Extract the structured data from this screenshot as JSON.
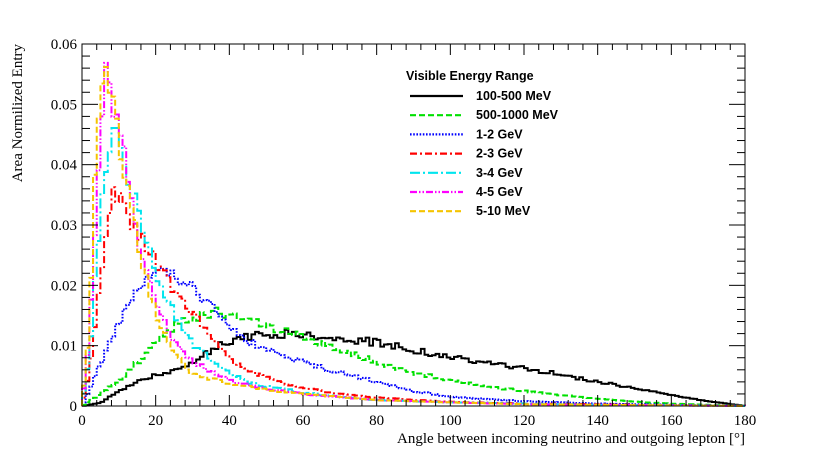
{
  "chart_data": {
    "type": "line",
    "histogram": true,
    "xlabel": "Angle between incoming neutrino and outgoing lepton [°]",
    "ylabel": "Area Normilized Entry",
    "xlim": [
      0,
      180
    ],
    "ylim": [
      0,
      0.06
    ],
    "xticks": [
      0,
      20,
      40,
      60,
      80,
      100,
      120,
      140,
      160,
      180
    ],
    "yticks": [
      0,
      0.01,
      0.02,
      0.03,
      0.04,
      0.05,
      0.06
    ],
    "ytick_labels": [
      "0",
      "0.01",
      "0.02",
      "0.03",
      "0.04",
      "0.05",
      "0.06"
    ],
    "bin_width": 1,
    "legend": {
      "title": "Visible Energy Range",
      "position": "top-center"
    },
    "series": [
      {
        "name": "100-500 MeV",
        "color": "#000000",
        "style": "solid",
        "shape": [
          [
            0,
            0
          ],
          [
            5,
            0.0005
          ],
          [
            10,
            0.0025
          ],
          [
            15,
            0.004
          ],
          [
            20,
            0.0052
          ],
          [
            25,
            0.006
          ],
          [
            30,
            0.0072
          ],
          [
            35,
            0.0092
          ],
          [
            40,
            0.0108
          ],
          [
            45,
            0.0115
          ],
          [
            50,
            0.012
          ],
          [
            55,
            0.012
          ],
          [
            60,
            0.0118
          ],
          [
            70,
            0.0113
          ],
          [
            80,
            0.0105
          ],
          [
            90,
            0.0093
          ],
          [
            100,
            0.008
          ],
          [
            110,
            0.0072
          ],
          [
            120,
            0.0063
          ],
          [
            130,
            0.0052
          ],
          [
            140,
            0.004
          ],
          [
            150,
            0.003
          ],
          [
            160,
            0.0018
          ],
          [
            170,
            0.0008
          ],
          [
            180,
            0
          ]
        ]
      },
      {
        "name": "500-1000 MeV",
        "color": "#00e000",
        "style": "dashed",
        "shape": [
          [
            0,
            0
          ],
          [
            2,
            0.0008
          ],
          [
            5,
            0.002
          ],
          [
            10,
            0.0042
          ],
          [
            15,
            0.0072
          ],
          [
            20,
            0.0105
          ],
          [
            25,
            0.0132
          ],
          [
            30,
            0.0148
          ],
          [
            35,
            0.0155
          ],
          [
            40,
            0.0153
          ],
          [
            45,
            0.0145
          ],
          [
            50,
            0.0133
          ],
          [
            60,
            0.0115
          ],
          [
            70,
            0.0093
          ],
          [
            80,
            0.0073
          ],
          [
            90,
            0.0055
          ],
          [
            100,
            0.0043
          ],
          [
            110,
            0.0032
          ],
          [
            120,
            0.0025
          ],
          [
            130,
            0.0018
          ],
          [
            140,
            0.0012
          ],
          [
            150,
            0.0007
          ],
          [
            160,
            0.0004
          ],
          [
            170,
            0.0002
          ],
          [
            180,
            0
          ]
        ]
      },
      {
        "name": "1-2 GeV",
        "color": "#0000ff",
        "style": "dotted",
        "shape": [
          [
            0,
            0
          ],
          [
            2,
            0.0025
          ],
          [
            5,
            0.007
          ],
          [
            8,
            0.011
          ],
          [
            10,
            0.014
          ],
          [
            13,
            0.018
          ],
          [
            17,
            0.0215
          ],
          [
            20,
            0.0228
          ],
          [
            23,
            0.0225
          ],
          [
            27,
            0.0212
          ],
          [
            30,
            0.02
          ],
          [
            33,
            0.018
          ],
          [
            37,
            0.0157
          ],
          [
            40,
            0.0132
          ],
          [
            45,
            0.0108
          ],
          [
            50,
            0.0095
          ],
          [
            55,
            0.0085
          ],
          [
            60,
            0.0072
          ],
          [
            70,
            0.0055
          ],
          [
            80,
            0.004
          ],
          [
            90,
            0.0025
          ],
          [
            100,
            0.0015
          ],
          [
            120,
            0.0008
          ],
          [
            140,
            0.0004
          ],
          [
            160,
            0.0002
          ],
          [
            180,
            0
          ]
        ]
      },
      {
        "name": "2-3 GeV",
        "color": "#ff0000",
        "style": "dashdot",
        "shape": [
          [
            0,
            0
          ],
          [
            2,
            0.0055
          ],
          [
            4,
            0.016
          ],
          [
            6,
            0.026
          ],
          [
            8,
            0.033
          ],
          [
            9,
            0.0355
          ],
          [
            10,
            0.0352
          ],
          [
            12,
            0.031
          ],
          [
            15,
            0.0285
          ],
          [
            18,
            0.026
          ],
          [
            20,
            0.024
          ],
          [
            25,
            0.019
          ],
          [
            30,
            0.0155
          ],
          [
            35,
            0.0112
          ],
          [
            40,
            0.0078
          ],
          [
            45,
            0.0058
          ],
          [
            50,
            0.0048
          ],
          [
            55,
            0.0038
          ],
          [
            60,
            0.003
          ],
          [
            70,
            0.002
          ],
          [
            80,
            0.0014
          ],
          [
            90,
            0.001
          ],
          [
            100,
            0.0007
          ],
          [
            120,
            0.0004
          ],
          [
            140,
            0.0003
          ],
          [
            160,
            0.0001
          ],
          [
            180,
            0
          ]
        ]
      },
      {
        "name": "3-4 GeV",
        "color": "#00e5ee",
        "style": "longdashdot",
        "shape": [
          [
            0,
            0
          ],
          [
            2,
            0.008
          ],
          [
            4,
            0.025
          ],
          [
            6,
            0.037
          ],
          [
            8,
            0.043
          ],
          [
            9,
            0.044
          ],
          [
            10,
            0.0435
          ],
          [
            12,
            0.04
          ],
          [
            15,
            0.032
          ],
          [
            18,
            0.026
          ],
          [
            20,
            0.022
          ],
          [
            23,
            0.018
          ],
          [
            25,
            0.0155
          ],
          [
            28,
            0.0125
          ],
          [
            30,
            0.0105
          ],
          [
            33,
            0.0088
          ],
          [
            35,
            0.0075
          ],
          [
            40,
            0.0055
          ],
          [
            45,
            0.004
          ],
          [
            50,
            0.0032
          ],
          [
            55,
            0.0028
          ],
          [
            60,
            0.0022
          ],
          [
            70,
            0.0015
          ],
          [
            80,
            0.001
          ],
          [
            100,
            0.0006
          ],
          [
            120,
            0.0004
          ],
          [
            140,
            0.0002
          ],
          [
            180,
            0
          ]
        ]
      },
      {
        "name": "4-5 GeV",
        "color": "#ff00ff",
        "style": "dashdotdot",
        "shape": [
          [
            0,
            0
          ],
          [
            2,
            0.011
          ],
          [
            4,
            0.035
          ],
          [
            5,
            0.048
          ],
          [
            6,
            0.054
          ],
          [
            7,
            0.055
          ],
          [
            8,
            0.052
          ],
          [
            9,
            0.05
          ],
          [
            10,
            0.048
          ],
          [
            12,
            0.04
          ],
          [
            14,
            0.032
          ],
          [
            16,
            0.026
          ],
          [
            20,
            0.0175
          ],
          [
            25,
            0.011
          ],
          [
            30,
            0.0075
          ],
          [
            35,
            0.0058
          ],
          [
            40,
            0.0042
          ],
          [
            45,
            0.0035
          ],
          [
            50,
            0.0028
          ],
          [
            60,
            0.002
          ],
          [
            70,
            0.0015
          ],
          [
            80,
            0.001
          ],
          [
            100,
            0.0006
          ],
          [
            120,
            0.0003
          ],
          [
            140,
            0.0002
          ],
          [
            180,
            0
          ]
        ]
      },
      {
        "name": "5-10 MeV",
        "color": "#f5c400",
        "style": "dashed",
        "shape": [
          [
            0,
            0
          ],
          [
            2,
            0.013
          ],
          [
            4,
            0.045
          ],
          [
            5,
            0.052
          ],
          [
            6,
            0.054
          ],
          [
            7,
            0.0545
          ],
          [
            8,
            0.055
          ],
          [
            9,
            0.054
          ],
          [
            10,
            0.045
          ],
          [
            12,
            0.038
          ],
          [
            14,
            0.031
          ],
          [
            16,
            0.025
          ],
          [
            18,
            0.02
          ],
          [
            20,
            0.015
          ],
          [
            23,
            0.011
          ],
          [
            25,
            0.0085
          ],
          [
            30,
            0.0055
          ],
          [
            35,
            0.0045
          ],
          [
            40,
            0.0038
          ],
          [
            45,
            0.0032
          ],
          [
            50,
            0.0027
          ],
          [
            60,
            0.002
          ],
          [
            70,
            0.0015
          ],
          [
            80,
            0.001
          ],
          [
            100,
            0.0006
          ],
          [
            120,
            0.0003
          ],
          [
            140,
            0.0002
          ],
          [
            180,
            0
          ]
        ]
      }
    ]
  }
}
